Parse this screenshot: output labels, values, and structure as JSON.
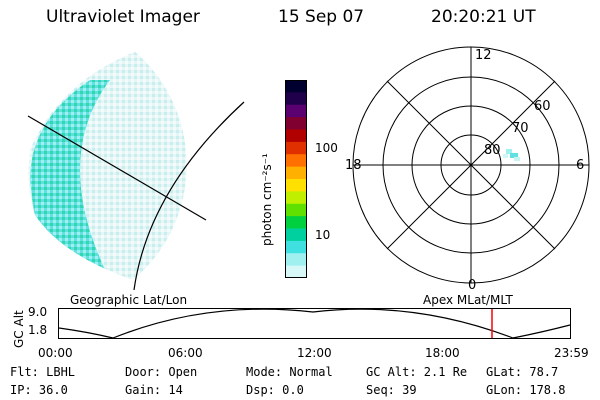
{
  "header": {
    "instrument": "Ultraviolet Imager",
    "date": "15 Sep 07",
    "time": "20:20:21 UT"
  },
  "colorbar": {
    "unit_label": "photon cm⁻²s⁻¹",
    "ticks": [
      "100",
      "10"
    ],
    "colors": [
      "#000030",
      "#20004a",
      "#5a0070",
      "#800030",
      "#b00000",
      "#e03000",
      "#ff7000",
      "#ffb000",
      "#ffe000",
      "#c0f000",
      "#60e000",
      "#00d040",
      "#00d0a0",
      "#40e0e0",
      "#a0f0f0",
      "#d8f8f8"
    ]
  },
  "polar": {
    "labels": {
      "top": "12",
      "left": "18",
      "right": "6",
      "bottom": "0"
    },
    "lat_labels": [
      "60",
      "70",
      "80"
    ]
  },
  "timeline": {
    "left_label": "Geographic Lat/Lon",
    "right_label": "Apex MLat/MLT",
    "axis_label": "GC Alt",
    "y_ticks": [
      "9.0",
      "1.8"
    ],
    "x_ticks": [
      "00:00",
      "06:00",
      "12:00",
      "18:00",
      "23:59"
    ],
    "marker_color": "#ff0000"
  },
  "info": {
    "flt": "Flt: LBHL",
    "ip": "IP: 36.0",
    "door": "Door: Open",
    "gain": "Gain: 14",
    "mode": "Mode: Normal",
    "dsp": "Dsp:    0.0",
    "gcalt": "GC Alt: 2.1 Re",
    "seq": "Seq: 39",
    "glat": "GLat:  78.7",
    "glon": "GLon: 178.8"
  }
}
